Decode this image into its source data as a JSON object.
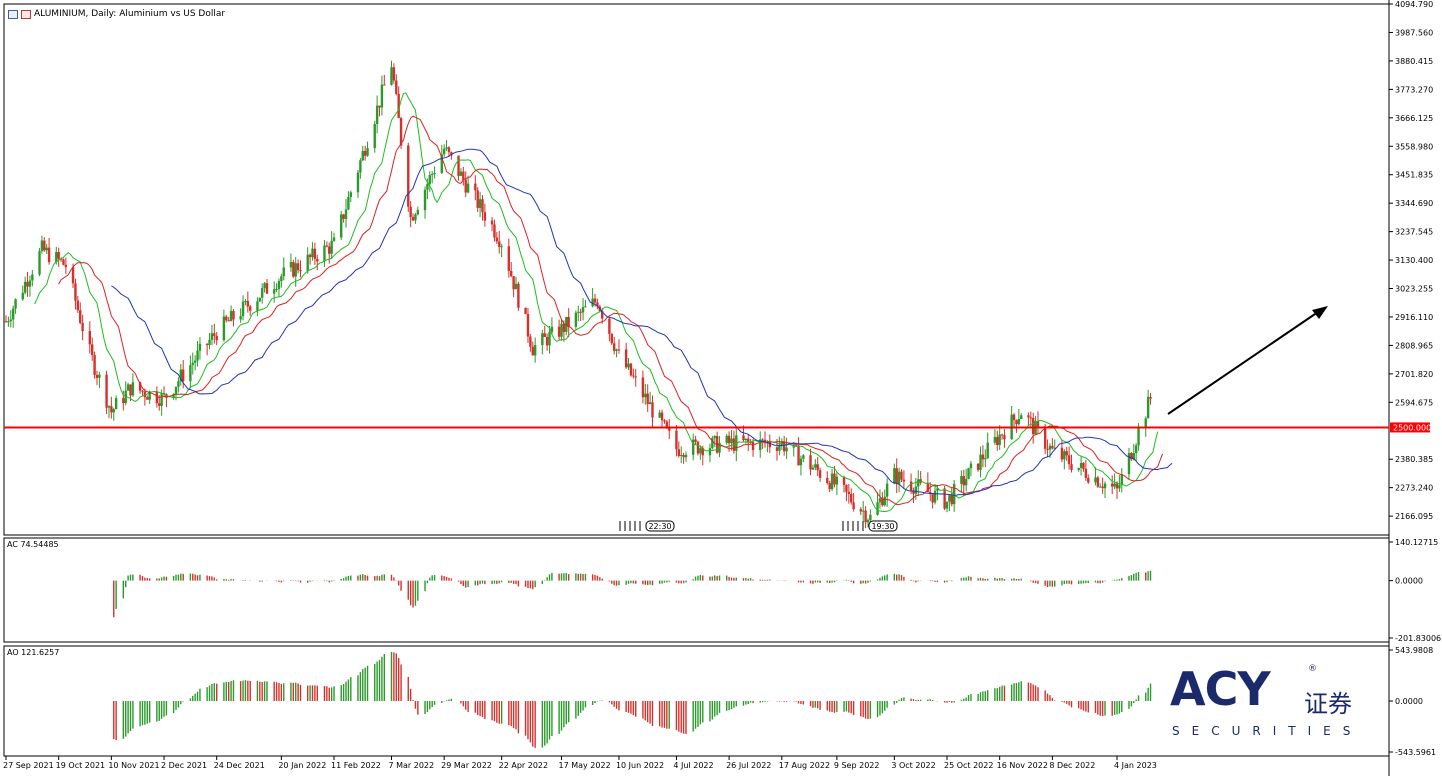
{
  "title": "ALUMINIUM, Daily:  Aluminium vs US Dollar",
  "colors": {
    "bull": "#2b9a2b",
    "bear": "#d4312c",
    "ma_fast": "#22bb22",
    "ma_mid": "#dd2222",
    "ma_slow": "#2233bb",
    "support": "#ff0000",
    "arrow": "#000000",
    "logo": "#1b2a6b"
  },
  "chart_data": [
    {
      "type": "candlestick",
      "title": "ALUMINIUM, Daily:  Aluminium vs US Dollar",
      "ylim": [
        2110,
        4094.79
      ],
      "y_ticks": [
        "4094.790",
        "3987.560",
        "3880.415",
        "3773.270",
        "3666.125",
        "3558.980",
        "3451.835",
        "3344.690",
        "3237.545",
        "3130.400",
        "3023.255",
        "2916.110",
        "2808.965",
        "2701.820",
        "2594.675",
        "2380.385",
        "2273.240",
        "2166.095"
      ],
      "x_ticks": [
        "27 Sep 2021",
        "19 Oct 2021",
        "10 Nov 2021",
        "2 Dec 2021",
        "24 Dec 2021",
        "20 Jan 2022",
        "11 Feb 2022",
        "7 Mar 2022",
        "29 Mar 2022",
        "22 Apr 2022",
        "17 May 2022",
        "10 Jun 2022",
        "4 Jul 2022",
        "26 Jul 2022",
        "17 Aug 2022",
        "9 Sep 2022",
        "3 Oct 2022",
        "25 Oct 2022",
        "16 Nov 2022",
        "8 Dec 2022",
        "4 Jan 2023"
      ],
      "close_path": [
        [
          "27 Sep 2021",
          2900
        ],
        [
          "12 Oct 2021",
          3170
        ],
        [
          "22 Oct 2021",
          3110
        ],
        [
          "1 Nov 2021",
          2780
        ],
        [
          "10 Nov 2021",
          2560
        ],
        [
          "18 Nov 2021",
          2650
        ],
        [
          "2 Dec 2021",
          2610
        ],
        [
          "24 Dec 2021",
          2860
        ],
        [
          "20 Jan 2022",
          3070
        ],
        [
          "11 Feb 2022",
          3190
        ],
        [
          "7 Mar 2022",
          3870
        ],
        [
          "15 Mar 2022",
          3290
        ],
        [
          "29 Mar 2022",
          3550
        ],
        [
          "22 Apr 2022",
          3200
        ],
        [
          "5 May 2022",
          2800
        ],
        [
          "17 May 2022",
          2870
        ],
        [
          "1 Jun 2022",
          2980
        ],
        [
          "10 Jun 2022",
          2770
        ],
        [
          "4 Jul 2022",
          2420
        ],
        [
          "26 Jul 2022",
          2440
        ],
        [
          "17 Aug 2022",
          2440
        ],
        [
          "9 Sep 2022",
          2280
        ],
        [
          "23 Sep 2022",
          2160
        ],
        [
          "3 Oct 2022",
          2320
        ],
        [
          "25 Oct 2022",
          2220
        ],
        [
          "16 Nov 2022",
          2470
        ],
        [
          "25 Nov 2022",
          2560
        ],
        [
          "8 Dec 2022",
          2410
        ],
        [
          "4 Jan 2023",
          2260
        ],
        [
          "18 Jan 2023",
          2610
        ]
      ],
      "series": [
        {
          "name": "",
          "role": "ma_fast"
        },
        {
          "name": "",
          "role": "ma_mid"
        },
        {
          "name": "",
          "role": "ma_slow"
        }
      ],
      "horizontal_line": {
        "value": 2500.0,
        "label": "2500.000"
      },
      "annotations": [
        "22:30",
        "19:30"
      ]
    },
    {
      "type": "bar",
      "title": "AC 74.54485",
      "ylim": [
        -201.83006,
        140.12715
      ],
      "y_ticks": [
        "140.12715",
        "0.0000",
        "-201.83006"
      ],
      "last_value": 74.54485
    },
    {
      "type": "bar",
      "title": "AO 121.6257",
      "ylim": [
        -543.5961,
        543.9808
      ],
      "y_ticks": [
        "543.9808",
        "0.0000",
        "-543.5961"
      ],
      "last_value": 121.6257
    }
  ],
  "logo": {
    "brand": "ACY",
    "cn": "证券",
    "sub": "SECURITIES",
    "reg": "®"
  }
}
